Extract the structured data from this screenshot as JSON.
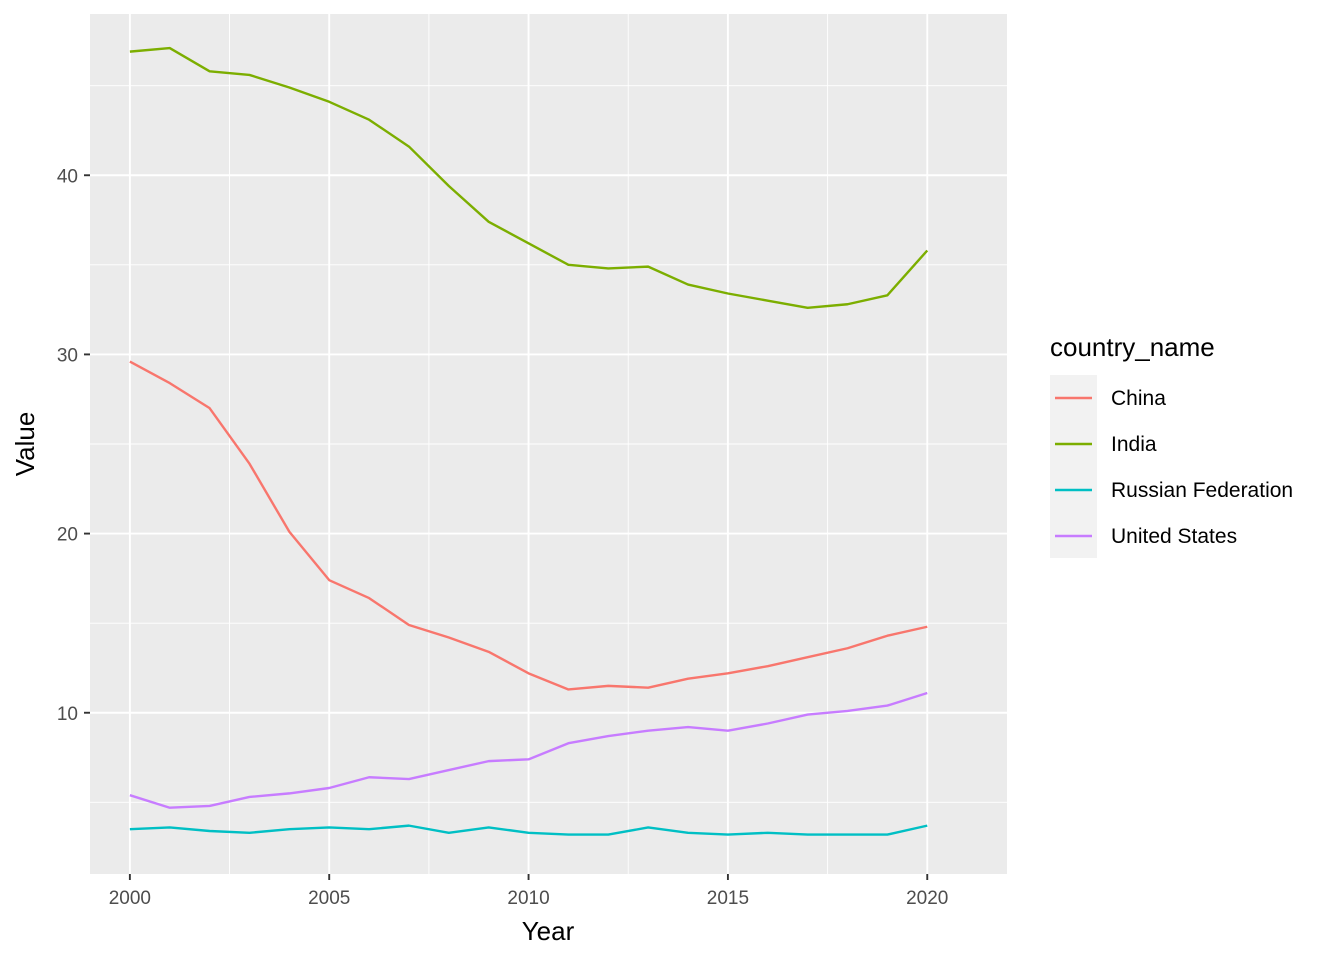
{
  "chart_data": {
    "type": "line",
    "xlabel": "Year",
    "ylabel": "Value",
    "xlim": [
      1999,
      2022
    ],
    "ylim": [
      1,
      49
    ],
    "x_ticks": [
      2000,
      2005,
      2010,
      2015,
      2020
    ],
    "y_ticks": [
      10,
      20,
      30,
      40
    ],
    "grid": true,
    "legend": {
      "title": "country_name",
      "position": "right"
    },
    "x": [
      2000,
      2001,
      2002,
      2003,
      2004,
      2005,
      2006,
      2007,
      2008,
      2009,
      2010,
      2011,
      2012,
      2013,
      2014,
      2015,
      2016,
      2017,
      2018,
      2019,
      2020
    ],
    "series": [
      {
        "name": "China",
        "color": "#F8766D",
        "values": [
          29.6,
          28.4,
          27.0,
          23.9,
          20.1,
          17.4,
          16.4,
          14.9,
          14.2,
          13.4,
          12.2,
          11.3,
          11.5,
          11.4,
          11.9,
          12.2,
          12.6,
          13.1,
          13.6,
          14.3,
          14.8
        ]
      },
      {
        "name": "India",
        "color": "#7CAE00",
        "values": [
          46.9,
          47.1,
          45.8,
          45.6,
          44.9,
          44.1,
          43.1,
          41.6,
          39.4,
          37.4,
          36.2,
          35.0,
          34.8,
          34.9,
          33.9,
          33.4,
          33.0,
          32.6,
          32.8,
          33.3,
          35.8
        ]
      },
      {
        "name": "Russian Federation",
        "color": "#00BFC4",
        "values": [
          3.5,
          3.6,
          3.4,
          3.3,
          3.5,
          3.6,
          3.5,
          3.7,
          3.3,
          3.6,
          3.3,
          3.2,
          3.2,
          3.6,
          3.3,
          3.2,
          3.3,
          3.2,
          3.2,
          3.2,
          3.7
        ]
      },
      {
        "name": "United States",
        "color": "#C77CFF",
        "values": [
          5.4,
          4.7,
          4.8,
          5.3,
          5.5,
          5.8,
          6.4,
          6.3,
          6.8,
          7.3,
          7.4,
          8.3,
          8.7,
          9.0,
          9.2,
          9.0,
          9.4,
          9.9,
          10.1,
          10.4,
          11.1
        ]
      }
    ]
  }
}
